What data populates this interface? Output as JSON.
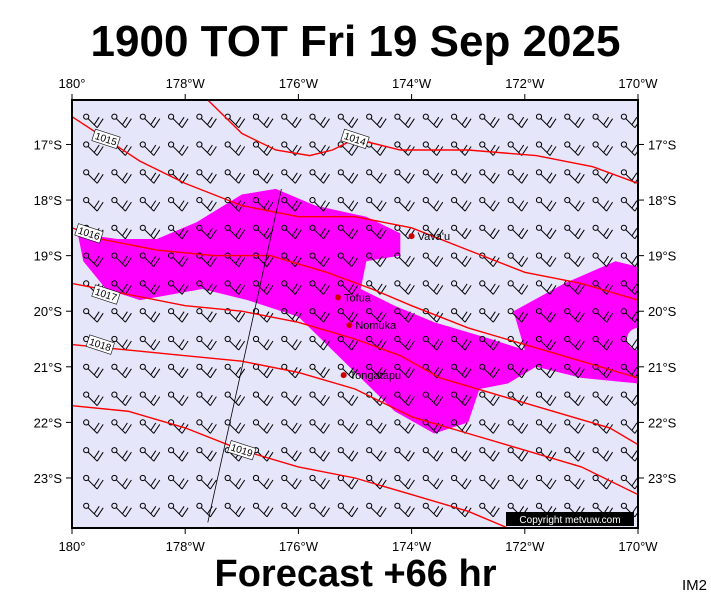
{
  "header": {
    "title": "1900 TOT Fri 19 Sep 2025"
  },
  "footer": {
    "forecast": "Forecast +66 hr",
    "tag": "IM2",
    "copyright": "Copyright metvuw.com"
  },
  "colors": {
    "ocean": "#e6e6fa",
    "isobar": "#ff0000",
    "rain": "#ff00ff",
    "barb": "#000000",
    "place": "#cc0000"
  },
  "map": {
    "lon_range": [
      180,
      190
    ],
    "lat_range": [
      -23.9,
      -16.2
    ],
    "lon_ticks": [
      {
        "lon": 180,
        "label": "180°"
      },
      {
        "lon": 182,
        "label": "178°W"
      },
      {
        "lon": 184,
        "label": "176°W"
      },
      {
        "lon": 186,
        "label": "174°W"
      },
      {
        "lon": 188,
        "label": "172°W"
      },
      {
        "lon": 190,
        "label": "170°W"
      }
    ],
    "lat_ticks": [
      {
        "lat": -17,
        "label": "17°S"
      },
      {
        "lat": -18,
        "label": "18°S"
      },
      {
        "lat": -19,
        "label": "19°S"
      },
      {
        "lat": -20,
        "label": "20°S"
      },
      {
        "lat": -21,
        "label": "21°S"
      },
      {
        "lat": -22,
        "label": "22°S"
      },
      {
        "lat": -23,
        "label": "23°S"
      }
    ],
    "isobars": [
      {
        "label": "1014",
        "label_at": [
          185.0,
          -16.9
        ],
        "points": [
          [
            182.4,
            -16.2
          ],
          [
            183.0,
            -16.8
          ],
          [
            183.6,
            -17.1
          ],
          [
            184.2,
            -17.2
          ],
          [
            184.6,
            -17.1
          ],
          [
            185.0,
            -16.9
          ],
          [
            185.8,
            -17.1
          ],
          [
            187.0,
            -17.1
          ],
          [
            188.2,
            -17.2
          ],
          [
            189.2,
            -17.4
          ],
          [
            190.0,
            -17.7
          ]
        ]
      },
      {
        "label": "1015",
        "label_at": [
          180.6,
          -16.9
        ],
        "points": [
          [
            180.0,
            -16.5
          ],
          [
            180.6,
            -16.9
          ],
          [
            181.2,
            -17.3
          ],
          [
            182.0,
            -17.7
          ],
          [
            183.0,
            -18.1
          ],
          [
            184.0,
            -18.3
          ],
          [
            185.0,
            -18.3
          ],
          [
            186.0,
            -18.5
          ],
          [
            187.0,
            -18.9
          ],
          [
            188.0,
            -19.3
          ],
          [
            189.0,
            -19.5
          ],
          [
            190.0,
            -19.8
          ]
        ]
      },
      {
        "label": "1016",
        "label_at": [
          180.3,
          -18.6
        ],
        "points": [
          [
            180.0,
            -18.5
          ],
          [
            180.5,
            -18.7
          ],
          [
            181.5,
            -18.9
          ],
          [
            182.5,
            -19.0
          ],
          [
            183.5,
            -19.0
          ],
          [
            184.5,
            -19.3
          ],
          [
            185.3,
            -19.6
          ],
          [
            186.0,
            -19.9
          ],
          [
            187.0,
            -20.3
          ],
          [
            188.0,
            -20.6
          ],
          [
            189.0,
            -20.9
          ],
          [
            190.0,
            -21.2
          ]
        ]
      },
      {
        "label": "1017",
        "label_at": [
          180.6,
          -19.7
        ],
        "points": [
          [
            180.0,
            -19.5
          ],
          [
            181.0,
            -19.7
          ],
          [
            182.0,
            -19.9
          ],
          [
            183.0,
            -20.0
          ],
          [
            184.0,
            -20.2
          ],
          [
            185.0,
            -20.5
          ],
          [
            185.8,
            -20.8
          ],
          [
            186.5,
            -21.2
          ],
          [
            187.5,
            -21.5
          ],
          [
            188.5,
            -21.8
          ],
          [
            189.5,
            -22.1
          ],
          [
            190.0,
            -22.4
          ]
        ]
      },
      {
        "label": "1018",
        "label_at": [
          180.5,
          -20.6
        ],
        "points": [
          [
            180.0,
            -20.6
          ],
          [
            181.0,
            -20.7
          ],
          [
            182.0,
            -20.8
          ],
          [
            183.0,
            -20.9
          ],
          [
            184.0,
            -21.1
          ],
          [
            185.0,
            -21.4
          ],
          [
            186.0,
            -21.9
          ],
          [
            187.0,
            -22.2
          ],
          [
            188.0,
            -22.5
          ],
          [
            189.0,
            -22.8
          ],
          [
            190.0,
            -23.3
          ]
        ]
      },
      {
        "label": "1019",
        "label_at": [
          183.0,
          -22.5
        ],
        "points": [
          [
            180.0,
            -21.7
          ],
          [
            181.0,
            -21.8
          ],
          [
            182.0,
            -22.1
          ],
          [
            183.0,
            -22.5
          ],
          [
            184.0,
            -22.8
          ],
          [
            185.0,
            -23.0
          ],
          [
            186.0,
            -23.3
          ],
          [
            187.0,
            -23.6
          ],
          [
            187.7,
            -23.9
          ]
        ]
      }
    ],
    "rain_area": [
      [
        180.1,
        -18.6
      ],
      [
        180.8,
        -18.7
      ],
      [
        181.5,
        -18.7
      ],
      [
        182.2,
        -18.4
      ],
      [
        183.0,
        -17.9
      ],
      [
        183.6,
        -17.8
      ],
      [
        184.3,
        -18.1
      ],
      [
        185.2,
        -18.3
      ],
      [
        185.8,
        -18.6
      ],
      [
        185.8,
        -19.0
      ],
      [
        185.2,
        -19.1
      ],
      [
        185.1,
        -19.6
      ],
      [
        185.7,
        -19.9
      ],
      [
        186.4,
        -20.2
      ],
      [
        187.4,
        -20.5
      ],
      [
        188.0,
        -20.7
      ],
      [
        187.8,
        -20.0
      ],
      [
        188.7,
        -19.5
      ],
      [
        189.6,
        -19.1
      ],
      [
        190.0,
        -19.2
      ],
      [
        190.0,
        -21.3
      ],
      [
        189.0,
        -21.2
      ],
      [
        188.2,
        -21.0
      ],
      [
        187.7,
        -21.3
      ],
      [
        187.2,
        -21.4
      ],
      [
        187.0,
        -22.0
      ],
      [
        186.4,
        -22.2
      ],
      [
        185.7,
        -21.8
      ],
      [
        185.1,
        -21.2
      ],
      [
        184.6,
        -20.7
      ],
      [
        184.0,
        -20.1
      ],
      [
        183.1,
        -19.8
      ],
      [
        182.3,
        -19.6
      ],
      [
        181.2,
        -19.8
      ],
      [
        180.6,
        -19.6
      ],
      [
        180.2,
        -19.1
      ]
    ],
    "rain_hole": {
      "lon": 190.0,
      "lat": -20.5
    },
    "track": [
      [
        183.7,
        -17.8
      ],
      [
        182.4,
        -23.8
      ]
    ],
    "places": [
      {
        "name": "Vava'u",
        "lon": 186.0,
        "lat": -18.65
      },
      {
        "name": "Tofua",
        "lon": 184.7,
        "lat": -19.75
      },
      {
        "name": "Nomuka",
        "lon": 184.9,
        "lat": -20.25
      },
      {
        "name": "Tongatapu",
        "lon": 184.8,
        "lat": -21.15
      }
    ],
    "barbs": {
      "lon_step": 0.5,
      "lat_step": 0.5,
      "lon_start": 180.25,
      "lat_start": -16.5
    }
  }
}
